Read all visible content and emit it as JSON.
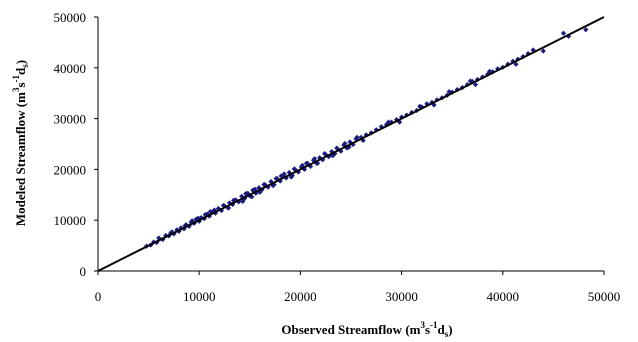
{
  "chart_data": {
    "type": "scatter",
    "xlabel": "Observed Streamflow (m3s-1ds)",
    "ylabel": "Modeled Streamflow (m3s-1ds)",
    "xlabel_parts": {
      "base": "Observed Streamflow (m",
      "sup1": "3",
      "mid": "s",
      "sup2": "-1",
      "mid2": "d",
      "sub": "s",
      "end": ")"
    },
    "ylabel_parts": {
      "base": "Modeled Streamflow (m",
      "sup1": "3",
      "mid": "s",
      "sup2": "-1",
      "mid2": "d",
      "sub": "s",
      "end": ")"
    },
    "xlim": [
      0,
      50000
    ],
    "ylim": [
      0,
      50000
    ],
    "x_ticks": [
      "0",
      "10000",
      "20000",
      "30000",
      "40000",
      "50000"
    ],
    "y_ticks": [
      "0",
      "10000",
      "20000",
      "30000",
      "40000",
      "50000"
    ],
    "grid": false,
    "legend": "none",
    "marker_color": "#1a1a80",
    "marker": "diamond",
    "reference_line": {
      "x": [
        0,
        50000
      ],
      "y": [
        0,
        50000
      ],
      "color": "#000000"
    },
    "x": [
      4800,
      5200,
      5500,
      5800,
      6100,
      6400,
      6700,
      7000,
      7200,
      7500,
      7800,
      8000,
      8200,
      8500,
      8700,
      9000,
      9200,
      9500,
      9700,
      10000,
      10200,
      10500,
      10800,
      11000,
      11300,
      11600,
      11900,
      12200,
      12500,
      12800,
      13000,
      13300,
      13600,
      13900,
      14200,
      14500,
      14800,
      15000,
      15300,
      15600,
      15900,
      16200,
      16500,
      16800,
      17100,
      17400,
      17700,
      18000,
      18300,
      18600,
      18900,
      19200,
      19500,
      19800,
      20100,
      20400,
      20700,
      21000,
      21300,
      21600,
      21900,
      22200,
      22500,
      22800,
      23100,
      23400,
      23700,
      24000,
      24300,
      24600,
      24900,
      25200,
      25500,
      26000,
      26500,
      27000,
      27500,
      28000,
      28500,
      29000,
      29500,
      30000,
      30500,
      31000,
      31500,
      32000,
      32500,
      33000,
      33500,
      34000,
      34500,
      35000,
      35500,
      36000,
      36500,
      37000,
      37500,
      38000,
      38500,
      39000,
      39500,
      40000,
      40500,
      41000,
      41500,
      42000,
      42500,
      43000,
      44000,
      46000,
      46500,
      48200,
      6000,
      7300,
      8600,
      9300,
      10600,
      11500,
      12400,
      13400,
      14600,
      15500,
      16400,
      17600,
      18400,
      19400,
      20600,
      21400,
      22400,
      23600,
      24400,
      25600,
      28700,
      31800,
      34700,
      36800,
      38700,
      12900,
      15200,
      16000,
      17300,
      19100,
      21700,
      23200,
      24800,
      9900,
      11100,
      14300,
      18100,
      20200,
      26200,
      29800,
      33200,
      37300,
      41300
    ],
    "y": [
      4900,
      5100,
      5700,
      5600,
      6300,
      6200,
      7000,
      6900,
      7500,
      7300,
      8100,
      7800,
      8500,
      8300,
      9100,
      8800,
      9600,
      9400,
      10200,
      9800,
      10500,
      10300,
      11200,
      10800,
      11600,
      11400,
      12300,
      11900,
      12800,
      12500,
      13400,
      13100,
      14000,
      13600,
      14700,
      14300,
      15300,
      14800,
      15900,
      15300,
      16400,
      16000,
      17000,
      16500,
      17600,
      17000,
      18200,
      17700,
      18700,
      18300,
      19400,
      18800,
      19900,
      19500,
      20500,
      20000,
      21200,
      20600,
      21800,
      21200,
      22300,
      21900,
      22900,
      22500,
      23500,
      23100,
      24000,
      23600,
      24800,
      24200,
      25400,
      24900,
      26000,
      26300,
      26800,
      27200,
      27800,
      28400,
      28800,
      29300,
      29800,
      30300,
      30700,
      31200,
      31600,
      32300,
      32900,
      33200,
      33700,
      34100,
      34600,
      35200,
      35700,
      36100,
      36700,
      37300,
      37700,
      38200,
      38700,
      39200,
      39800,
      40100,
      40700,
      41300,
      41700,
      42200,
      42800,
      43500,
      43300,
      46800,
      46200,
      47500,
      6500,
      7700,
      8900,
      9900,
      11100,
      12000,
      12900,
      13900,
      15200,
      16100,
      17000,
      18200,
      19100,
      20100,
      21200,
      22100,
      23100,
      24200,
      25100,
      26300,
      29300,
      32400,
      35300,
      37400,
      39300,
      12400,
      14600,
      15500,
      16800,
      18500,
      21200,
      22700,
      24400,
      10400,
      11700,
      13700,
      18700,
      20800,
      25700,
      29300,
      32700,
      36700,
      40700
    ]
  }
}
